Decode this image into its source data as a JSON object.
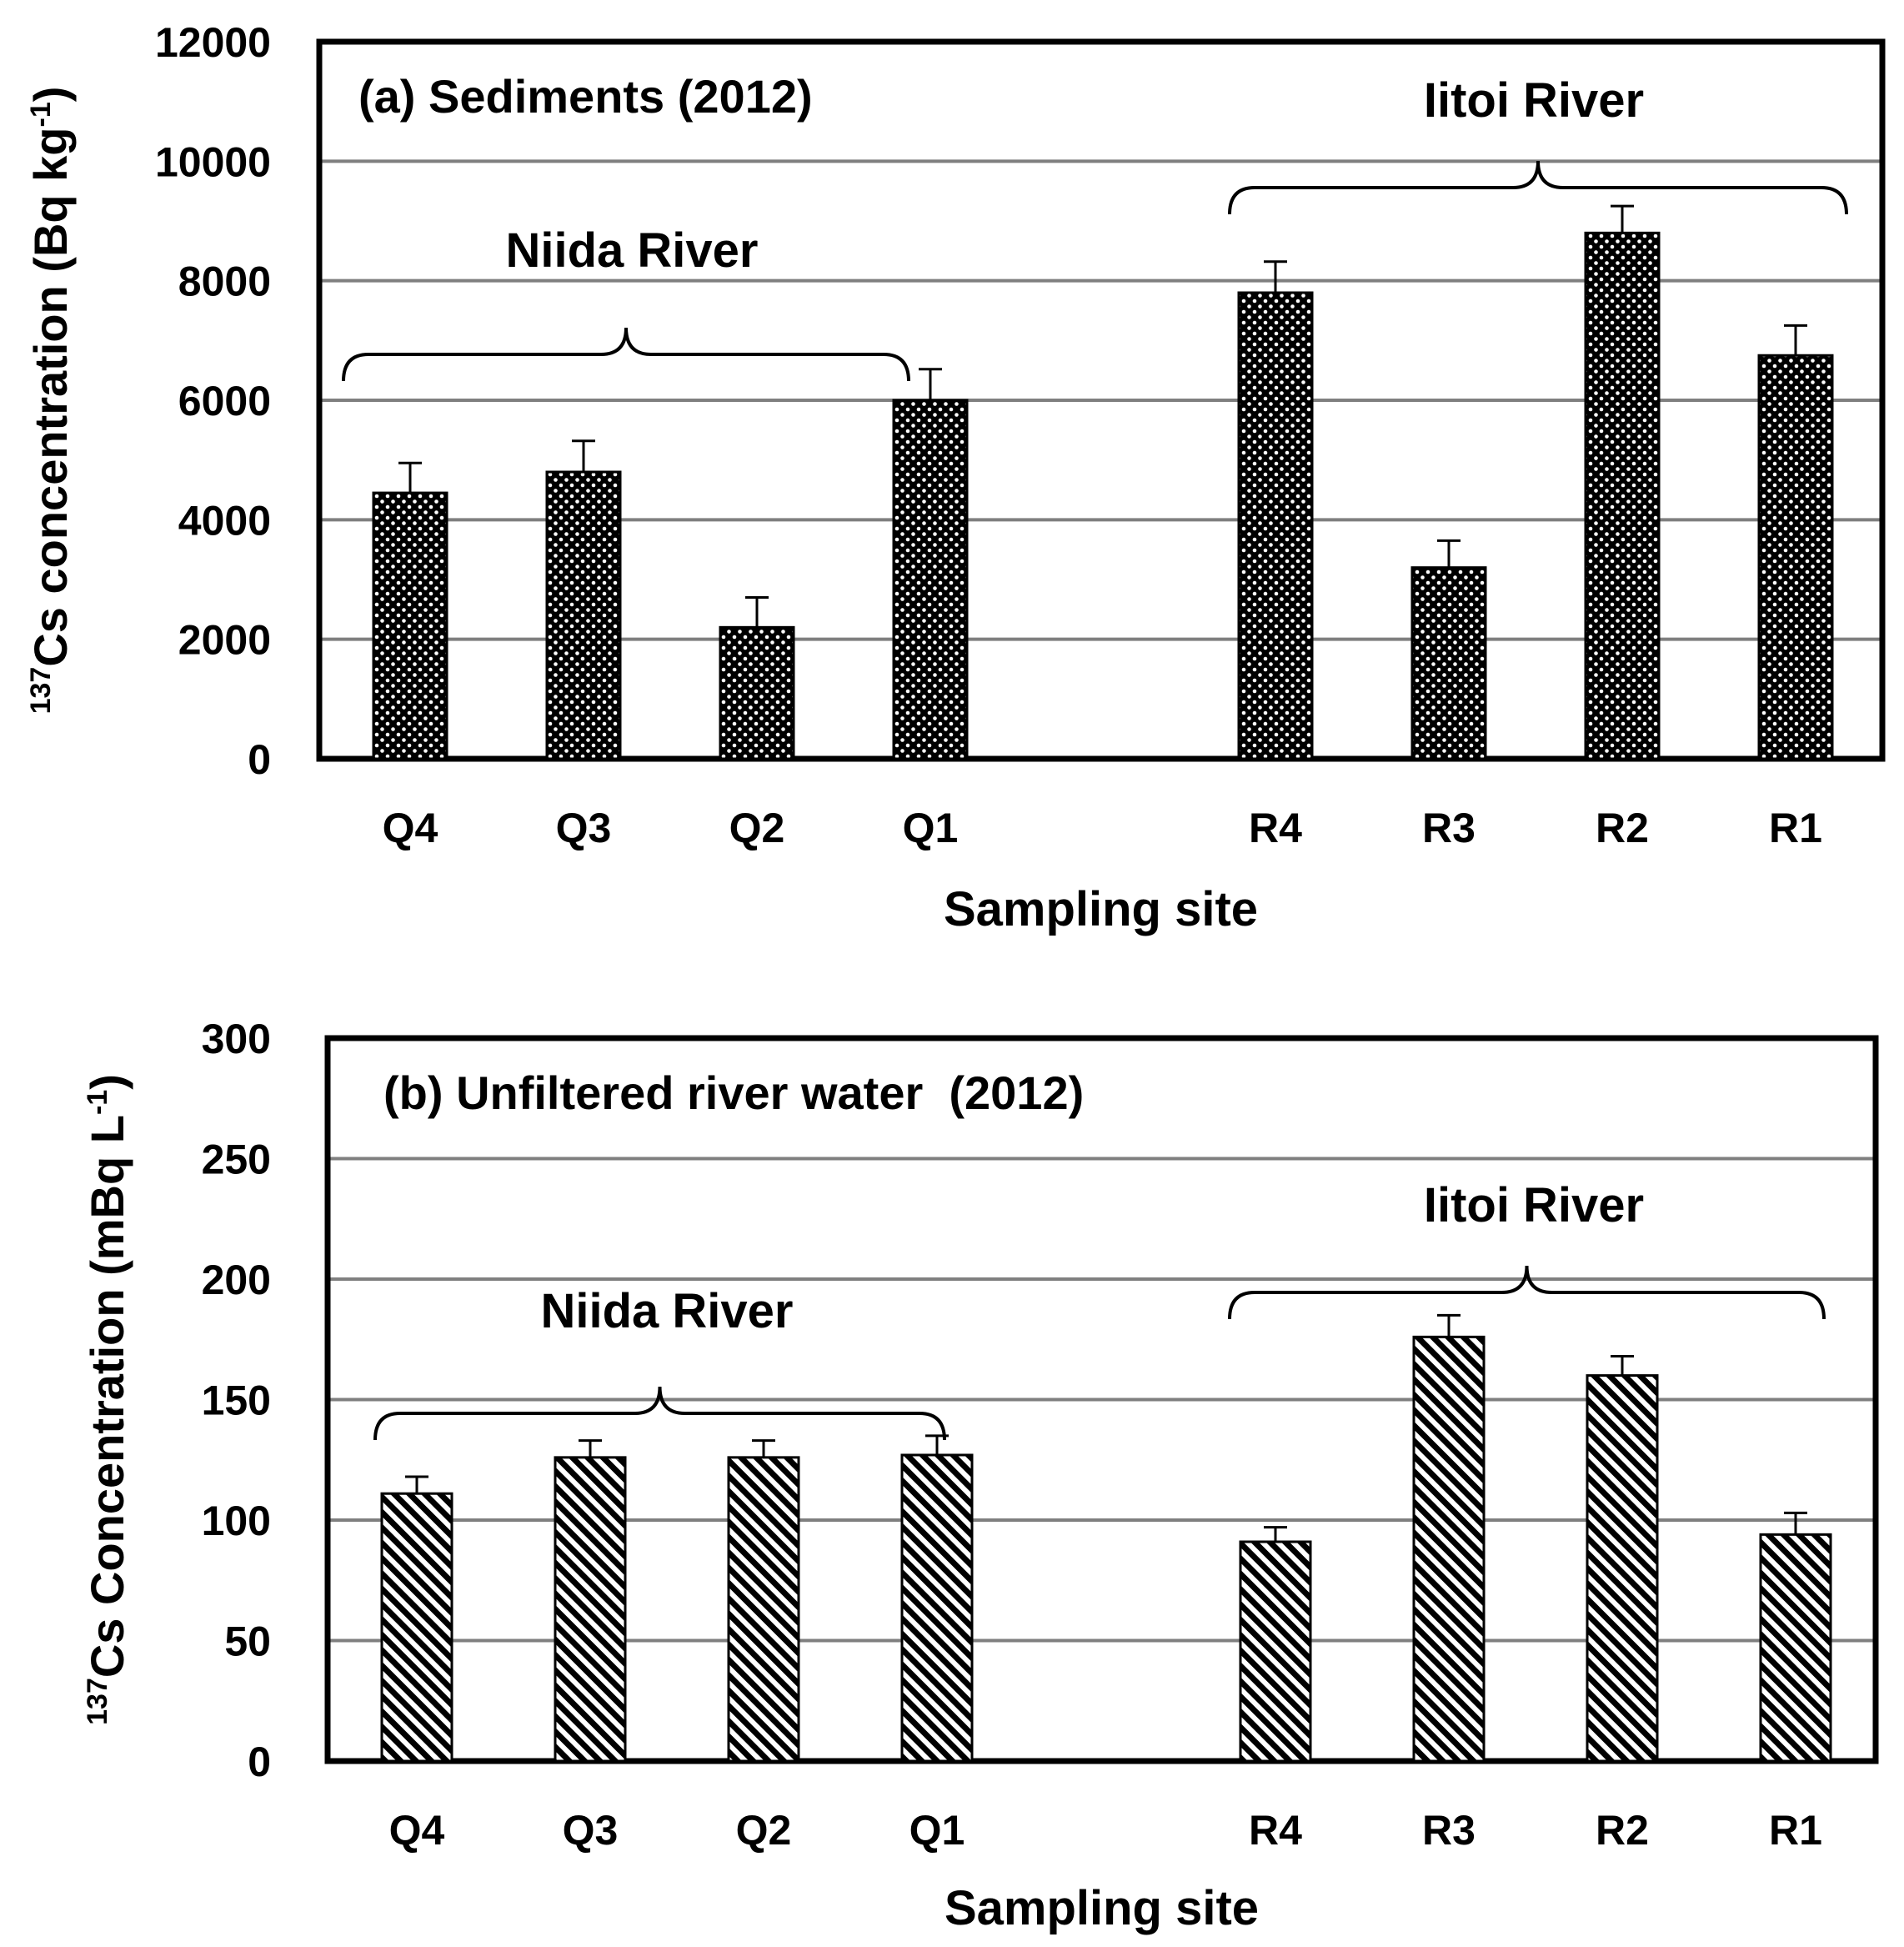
{
  "chart_data": [
    {
      "type": "bar",
      "panel_title": "(a) Sediments (2012)",
      "categories": [
        "Q4",
        "Q3",
        "Q2",
        "Q1",
        "",
        "R4",
        "R3",
        "R2",
        "R1"
      ],
      "values": [
        4450,
        4800,
        2200,
        6000,
        null,
        7800,
        3200,
        8800,
        6750
      ],
      "error": [
        500,
        520,
        500,
        520,
        null,
        520,
        450,
        450,
        500
      ],
      "xlabel": "Sampling site",
      "ylabel_super": "137",
      "ylabel_main": "Cs concentration (Bq kg",
      "ylabel_unit_super": "-1",
      "ylabel_close": ")",
      "ylim": [
        0,
        12000
      ],
      "yticks": [
        0,
        2000,
        4000,
        6000,
        8000,
        10000,
        12000
      ],
      "pattern": "dots",
      "groups": [
        {
          "label": "Niida River",
          "from": 0,
          "to": 3
        },
        {
          "label": "Iitoi River",
          "from": 5,
          "to": 8
        }
      ]
    },
    {
      "type": "bar",
      "panel_title": "(b) Unfiltered river water  (2012)",
      "categories": [
        "Q4",
        "Q3",
        "Q2",
        "Q1",
        "",
        "R4",
        "R3",
        "R2",
        "R1"
      ],
      "values": [
        111,
        126,
        126,
        127,
        null,
        91,
        176,
        160,
        94
      ],
      "error": [
        7,
        7,
        7,
        8,
        null,
        6,
        9,
        8,
        9
      ],
      "xlabel": "Sampling site",
      "ylabel_super": "137",
      "ylabel_main": "Cs Concentration (mBq L",
      "ylabel_unit_super": "-1",
      "ylabel_close": ")",
      "ylim": [
        0,
        300
      ],
      "yticks": [
        0,
        50,
        100,
        150,
        200,
        250,
        300
      ],
      "pattern": "hatch",
      "groups": [
        {
          "label": "Niida River",
          "from": 0,
          "to": 3
        },
        {
          "label": "Iitoi River",
          "from": 5,
          "to": 8
        }
      ]
    }
  ]
}
